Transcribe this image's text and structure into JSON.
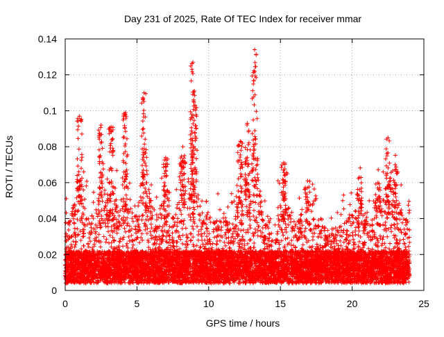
{
  "chart_data": {
    "type": "scatter",
    "title": "Day 231 of 2025, Rate Of TEC Index for receiver mmar",
    "xlabel": "GPS time / hours",
    "ylabel": "ROTI / TECUs",
    "xlim": [
      0,
      25
    ],
    "ylim": [
      0,
      0.14
    ],
    "xticks": [
      "0",
      "5",
      "10",
      "15",
      "20",
      "25"
    ],
    "yticks": [
      "0",
      "0.02",
      "0.04",
      "0.06",
      "0.08",
      "0.1",
      "0.12",
      "0.14"
    ],
    "grid": true,
    "marker": "+",
    "color": "#ff0000",
    "series": [
      {
        "values_summary": "dense plus-marker scatter of ROTI samples over 0-24 h",
        "peaks": [
          {
            "x": 1.0,
            "y": 0.097
          },
          {
            "x": 2.5,
            "y": 0.092
          },
          {
            "x": 3.2,
            "y": 0.091
          },
          {
            "x": 4.2,
            "y": 0.099
          },
          {
            "x": 5.5,
            "y": 0.11
          },
          {
            "x": 7.0,
            "y": 0.074
          },
          {
            "x": 8.2,
            "y": 0.08
          },
          {
            "x": 8.9,
            "y": 0.127
          },
          {
            "x": 9.0,
            "y": 0.111
          },
          {
            "x": 12.2,
            "y": 0.083
          },
          {
            "x": 12.7,
            "y": 0.093
          },
          {
            "x": 13.2,
            "y": 0.134
          },
          {
            "x": 15.2,
            "y": 0.071
          },
          {
            "x": 16.9,
            "y": 0.061
          },
          {
            "x": 20.5,
            "y": 0.063
          },
          {
            "x": 21.8,
            "y": 0.06
          },
          {
            "x": 22.5,
            "y": 0.085
          },
          {
            "x": 23.0,
            "y": 0.07
          }
        ]
      }
    ]
  }
}
